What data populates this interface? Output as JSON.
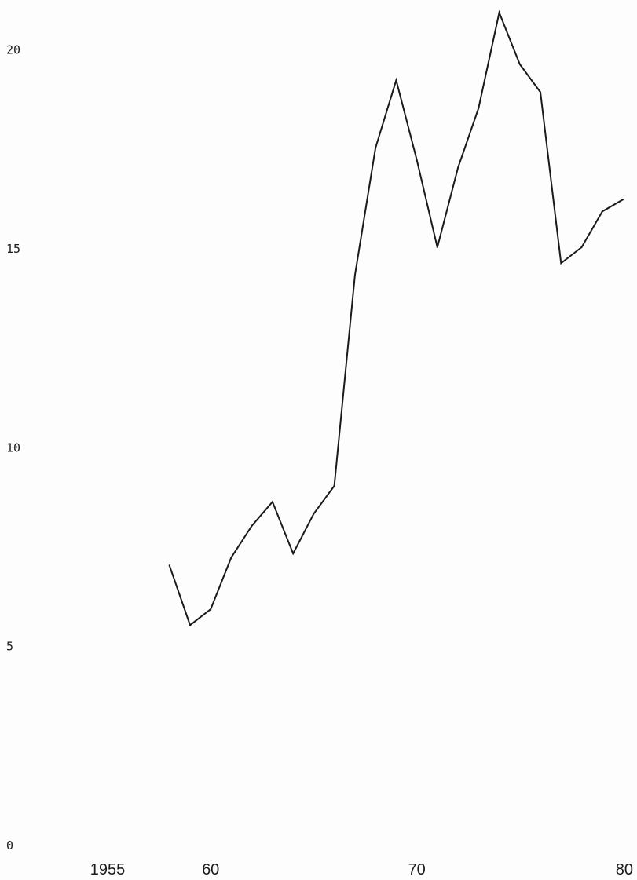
{
  "chart_data": {
    "type": "line",
    "title": "",
    "xlabel": "",
    "ylabel": "",
    "xlim": [
      1955,
      1980
    ],
    "ylim": [
      0,
      21
    ],
    "grid": false,
    "legend": "none",
    "line_color": "#1a1a1a",
    "background_color": "#fdfdfd",
    "y_ticks": [
      {
        "value": 0,
        "label": "0"
      },
      {
        "value": 5,
        "label": "5"
      },
      {
        "value": 10,
        "label": "10"
      },
      {
        "value": 15,
        "label": "15"
      },
      {
        "value": 20,
        "label": "20"
      }
    ],
    "x_ticks": [
      {
        "value": 1955,
        "label": "1955"
      },
      {
        "value": 1960,
        "label": "60"
      },
      {
        "value": 1970,
        "label": "70"
      },
      {
        "value": 1980,
        "label": "80"
      }
    ],
    "series": [
      {
        "x": [
          1958,
          1959,
          1960,
          1961,
          1962,
          1963,
          1964,
          1965,
          1966,
          1967,
          1968,
          1969,
          1970,
          1971,
          1972,
          1973,
          1974,
          1975,
          1976,
          1977,
          1978,
          1979,
          1980
        ],
        "values": [
          7.0,
          5.5,
          5.9,
          7.2,
          8.0,
          8.6,
          7.3,
          8.3,
          9.0,
          14.3,
          17.5,
          19.2,
          17.2,
          15.0,
          17.0,
          18.5,
          20.9,
          19.6,
          18.9,
          14.6,
          15.0,
          15.9,
          16.2
        ]
      }
    ]
  }
}
